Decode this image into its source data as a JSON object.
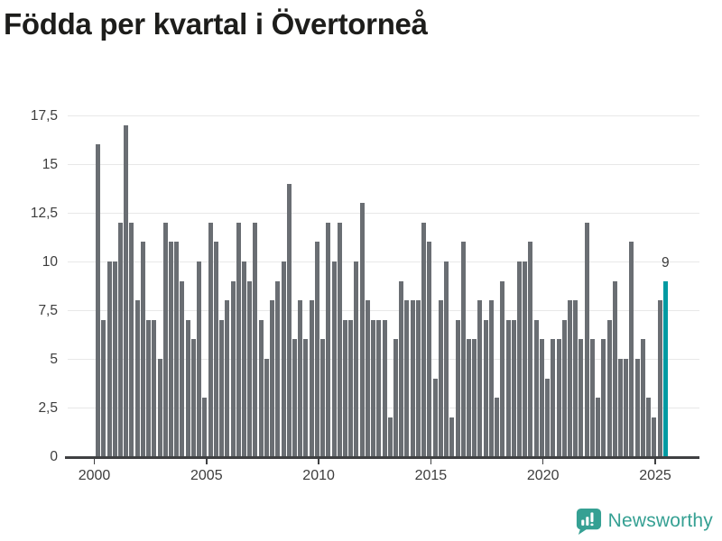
{
  "chart": {
    "title": "Födda per kvartal i Övertorneå",
    "annotation_label": "9",
    "colors": {
      "bar": "#6a6e73",
      "highlight": "#009aa2",
      "axis": "#3f4042",
      "grid": "#e8e8e8",
      "text": "#3d3d3d",
      "title": "#1d1d1b"
    }
  },
  "chart_data": {
    "type": "bar",
    "title": "Födda per kvartal i Övertorneå",
    "frequency": "quarterly",
    "x_start": "2000-Q1",
    "x_end": "2025-Q2",
    "series": [
      {
        "name": "Födda per kvartal",
        "values": [
          16,
          7,
          10,
          10,
          12,
          17,
          12,
          8,
          11,
          7,
          7,
          5,
          12,
          11,
          11,
          9,
          7,
          6,
          10,
          3,
          12,
          11,
          7,
          8,
          9,
          12,
          10,
          9,
          12,
          7,
          5,
          8,
          9,
          10,
          14,
          6,
          8,
          6,
          8,
          11,
          6,
          12,
          10,
          12,
          7,
          7,
          10,
          13,
          8,
          7,
          7,
          7,
          2,
          6,
          9,
          8,
          8,
          8,
          12,
          11,
          4,
          8,
          10,
          2,
          7,
          11,
          6,
          6,
          8,
          7,
          8,
          3,
          9,
          7,
          7,
          10,
          10,
          11,
          7,
          6,
          4,
          6,
          6,
          7,
          8,
          8,
          6,
          12,
          6,
          3,
          6,
          7,
          9,
          5,
          5,
          11,
          5,
          6,
          3,
          2,
          8,
          9
        ]
      }
    ],
    "highlight_last_bar": {
      "value": 9,
      "label": "9",
      "color": "#009aa2"
    },
    "ylim": [
      0,
      17.5
    ],
    "grid": true,
    "legend": "none",
    "xlabel": "",
    "ylabel": "",
    "x_tick_labels": [
      "2000",
      "2005",
      "2010",
      "2015",
      "2020",
      "2025"
    ],
    "y_tick_labels": [
      "0",
      "2,5",
      "5",
      "7,5",
      "10",
      "12,5",
      "15",
      "17,5"
    ],
    "y_tick_values": [
      0,
      2.5,
      5,
      7.5,
      10,
      12.5,
      15,
      17.5
    ]
  },
  "footer": {
    "brand": "Newsworthy",
    "brand_color": "#35a093",
    "icon": "bar-chart-speech-bubble-icon"
  }
}
